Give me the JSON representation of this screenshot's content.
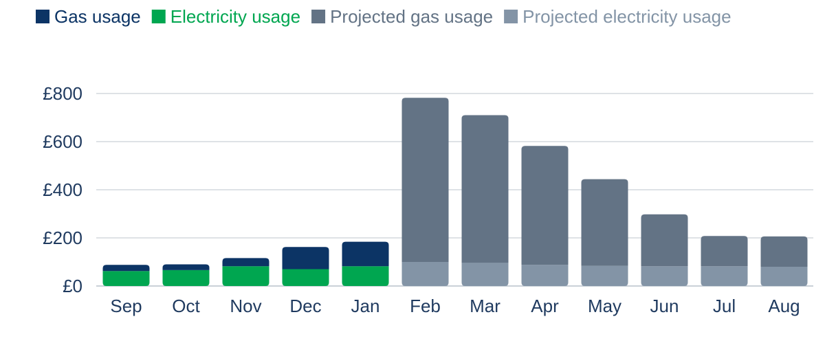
{
  "chart_data": {
    "type": "bar",
    "stacked": true,
    "categories": [
      "Sep",
      "Oct",
      "Nov",
      "Dec",
      "Jan",
      "Feb",
      "Mar",
      "Apr",
      "May",
      "Jun",
      "Jul",
      "Aug"
    ],
    "series": [
      {
        "name": "Electricity usage",
        "color": "#00a650",
        "values": [
          62,
          66,
          82,
          70,
          82,
          null,
          null,
          null,
          null,
          null,
          null,
          null
        ]
      },
      {
        "name": "Gas usage",
        "color": "#0c3465",
        "values": [
          26,
          24,
          34,
          92,
          102,
          null,
          null,
          null,
          null,
          null,
          null,
          null
        ]
      },
      {
        "name": "Projected electricity usage",
        "color": "#8394a6",
        "values": [
          null,
          null,
          null,
          null,
          null,
          100,
          96,
          88,
          84,
          82,
          82,
          80
        ]
      },
      {
        "name": "Projected gas usage",
        "color": "#637385",
        "values": [
          null,
          null,
          null,
          null,
          null,
          682,
          614,
          494,
          360,
          216,
          126,
          126
        ]
      }
    ],
    "legend": {
      "position": "top-left",
      "order": [
        "Gas usage",
        "Electricity usage",
        "Projected gas usage",
        "Projected electricity usage"
      ],
      "text_colors": [
        "#0c3465",
        "#00a650",
        "#637385",
        "#8394a6"
      ]
    },
    "yticks": [
      0,
      200,
      400,
      600,
      800
    ],
    "ytick_labels": [
      "£0",
      "£200",
      "£400",
      "£600",
      "£800"
    ],
    "ylim": [
      0,
      800
    ],
    "grid": true,
    "title": "",
    "xlabel": "",
    "ylabel": ""
  }
}
